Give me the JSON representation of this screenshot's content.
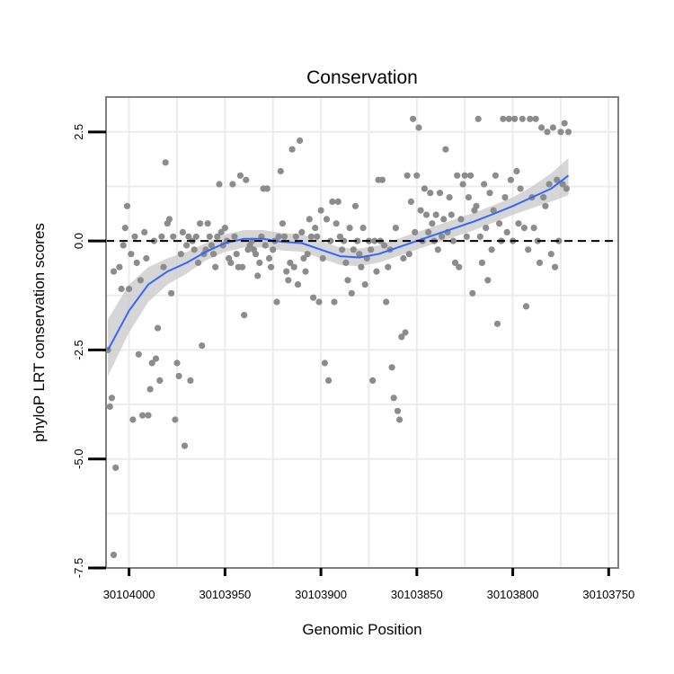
{
  "chart_data": {
    "type": "scatter",
    "title": "Conservation",
    "xlabel": "Genomic Position",
    "ylabel": "phyloP LRT conservation scores",
    "x_reversed": true,
    "xlim": [
      30104012,
      30103745
    ],
    "ylim": [
      -7.5,
      3.3
    ],
    "x_ticks": [
      30104000,
      30103950,
      30103900,
      30103850,
      30103800,
      30103750
    ],
    "x_tick_labels": [
      "30104000",
      "30103950",
      "30103900",
      "30103850",
      "30103800",
      "30103750"
    ],
    "y_ticks": [
      -7.5,
      -5.0,
      -2.5,
      0.0,
      2.5
    ],
    "y_tick_labels": [
      "-7.5",
      "-5.0",
      "-2.5",
      "0.0",
      "2.5"
    ],
    "reference_line": {
      "y": 0.0,
      "style": "dashed"
    },
    "grid": true,
    "colors": {
      "points": "#8c8c8c",
      "smooth": "#3366ff",
      "ribbon": "#c8c8c8",
      "panel_border": "#7f7f7f",
      "grid": "#ececec"
    },
    "points": [
      [
        30104011,
        -2.5
      ],
      [
        30104010,
        -3.8
      ],
      [
        30104009,
        -3.6
      ],
      [
        30104008,
        -0.7
      ],
      [
        30104007,
        -5.2
      ],
      [
        30104008,
        -7.2
      ],
      [
        30104005,
        -0.6
      ],
      [
        30104004,
        -1.1
      ],
      [
        30104003,
        -0.1
      ],
      [
        30104002,
        0.3
      ],
      [
        30104001,
        0.8
      ],
      [
        30104000,
        -1.1
      ],
      [
        30103999,
        -0.3
      ],
      [
        30103998,
        -4.1
      ],
      [
        30103997,
        0.1
      ],
      [
        30103996,
        -0.5
      ],
      [
        30103995,
        -2.6
      ],
      [
        30103994,
        -0.9
      ],
      [
        30103993,
        -4.0
      ],
      [
        30103992,
        0.2
      ],
      [
        30103991,
        -0.4
      ],
      [
        30103990,
        -4.0
      ],
      [
        30103989,
        -3.4
      ],
      [
        30103988,
        -2.8
      ],
      [
        30103987,
        0.0
      ],
      [
        30103986,
        -2.7
      ],
      [
        30103985,
        -2.0
      ],
      [
        30103984,
        -3.2
      ],
      [
        30103983,
        0.1
      ],
      [
        30103982,
        -0.6
      ],
      [
        30103981,
        1.8
      ],
      [
        30103980,
        0.4
      ],
      [
        30103979,
        0.5
      ],
      [
        30103978,
        -1.2
      ],
      [
        30103977,
        0.1
      ],
      [
        30103976,
        -4.1
      ],
      [
        30103975,
        -2.8
      ],
      [
        30103974,
        -3.1
      ],
      [
        30103973,
        -0.3
      ],
      [
        30103972,
        0.2
      ],
      [
        30103971,
        -4.7
      ],
      [
        30103970,
        -0.1
      ],
      [
        30103969,
        0.1
      ],
      [
        30103968,
        -3.2
      ],
      [
        30103967,
        0.0
      ],
      [
        30103966,
        -0.2
      ],
      [
        30103965,
        0.1
      ],
      [
        30103964,
        -0.5
      ],
      [
        30103963,
        0.4
      ],
      [
        30103962,
        -2.4
      ],
      [
        30103961,
        -0.3
      ],
      [
        30103960,
        -0.2
      ],
      [
        30103959,
        0.4
      ],
      [
        30103958,
        0.1
      ],
      [
        30103957,
        -0.1
      ],
      [
        30103956,
        -0.3
      ],
      [
        30103955,
        -0.6
      ],
      [
        30103954,
        0.1
      ],
      [
        30103953,
        1.3
      ],
      [
        30103952,
        0.2
      ],
      [
        30103951,
        -0.1
      ],
      [
        30103950,
        0.3
      ],
      [
        30103949,
        0.0
      ],
      [
        30103948,
        -0.4
      ],
      [
        30103947,
        -0.5
      ],
      [
        30103946,
        1.3
      ],
      [
        30103945,
        0.1
      ],
      [
        30103944,
        -0.3
      ],
      [
        30103943,
        -0.6
      ],
      [
        30103942,
        1.5
      ],
      [
        30103941,
        -0.6
      ],
      [
        30103940,
        -1.7
      ],
      [
        30103939,
        1.4
      ],
      [
        30103938,
        -0.2
      ],
      [
        30103937,
        -0.1
      ],
      [
        30103936,
        0.0
      ],
      [
        30103935,
        -0.2
      ],
      [
        30103934,
        -0.3
      ],
      [
        30103933,
        -0.8
      ],
      [
        30103932,
        -0.5
      ],
      [
        30103931,
        0.1
      ],
      [
        30103930,
        1.2
      ],
      [
        30103929,
        -0.1
      ],
      [
        30103928,
        1.2
      ],
      [
        30103927,
        -0.4
      ],
      [
        30103926,
        -0.6
      ],
      [
        30103925,
        -0.2
      ],
      [
        30103924,
        0.0
      ],
      [
        30103923,
        -1.4
      ],
      [
        30103922,
        0.1
      ],
      [
        30103921,
        1.6
      ],
      [
        30103920,
        0.4
      ],
      [
        30103919,
        0.1
      ],
      [
        30103918,
        -0.7
      ],
      [
        30103917,
        -0.9
      ],
      [
        30103916,
        -0.5
      ],
      [
        30103915,
        2.1
      ],
      [
        30103914,
        -0.6
      ],
      [
        30103913,
        0.1
      ],
      [
        30103912,
        -1.0
      ],
      [
        30103911,
        2.3
      ],
      [
        30103910,
        0.2
      ],
      [
        30103909,
        -0.4
      ],
      [
        30103908,
        -0.7
      ],
      [
        30103907,
        -0.3
      ],
      [
        30103906,
        0.5
      ],
      [
        30103905,
        0.1
      ],
      [
        30103904,
        -1.3
      ],
      [
        30103903,
        0.3
      ],
      [
        30103902,
        0.1
      ],
      [
        30103901,
        -1.4
      ],
      [
        30103900,
        0.7
      ],
      [
        30103899,
        -0.4
      ],
      [
        30103898,
        -2.8
      ],
      [
        30103897,
        0.5
      ],
      [
        30103896,
        -3.2
      ],
      [
        30103895,
        0.0
      ],
      [
        30103894,
        0.9
      ],
      [
        30103893,
        -1.4
      ],
      [
        30103892,
        0.4
      ],
      [
        30103891,
        0.9
      ],
      [
        30103890,
        0.1
      ],
      [
        30103889,
        -0.2
      ],
      [
        30103888,
        0.0
      ],
      [
        30103887,
        -0.5
      ],
      [
        30103886,
        -0.9
      ],
      [
        30103885,
        0.3
      ],
      [
        30103884,
        -1.2
      ],
      [
        30103883,
        -0.2
      ],
      [
        30103882,
        0.8
      ],
      [
        30103881,
        0.0
      ],
      [
        30103880,
        -0.3
      ],
      [
        30103879,
        -0.6
      ],
      [
        30103878,
        0.3
      ],
      [
        30103877,
        -1.0
      ],
      [
        30103876,
        -0.4
      ],
      [
        30103875,
        0.0
      ],
      [
        30103874,
        -0.2
      ],
      [
        30103873,
        -3.2
      ],
      [
        30103872,
        0.0
      ],
      [
        30103871,
        -0.7
      ],
      [
        30103870,
        1.4
      ],
      [
        30103869,
        0.0
      ],
      [
        30103868,
        1.4
      ],
      [
        30103867,
        -0.1
      ],
      [
        30103866,
        -1.4
      ],
      [
        30103865,
        -0.6
      ],
      [
        30103864,
        -0.2
      ],
      [
        30103863,
        -2.9
      ],
      [
        30103862,
        -3.6
      ],
      [
        30103861,
        0.3
      ],
      [
        30103860,
        -3.9
      ],
      [
        30103859,
        -4.1
      ],
      [
        30103858,
        -2.2
      ],
      [
        30103857,
        -0.4
      ],
      [
        30103856,
        -2.1
      ],
      [
        30103855,
        1.5
      ],
      [
        30103854,
        -0.3
      ],
      [
        30103853,
        0.9
      ],
      [
        30103852,
        2.8
      ],
      [
        30103851,
        0.2
      ],
      [
        30103850,
        1.5
      ],
      [
        30103849,
        2.6
      ],
      [
        30103848,
        0.7
      ],
      [
        30103847,
        0.0
      ],
      [
        30103846,
        1.2
      ],
      [
        30103845,
        0.6
      ],
      [
        30103844,
        0.2
      ],
      [
        30103843,
        1.1
      ],
      [
        30103842,
        0.4
      ],
      [
        30103841,
        0.0
      ],
      [
        30103840,
        0.6
      ],
      [
        30103839,
        -0.2
      ],
      [
        30103838,
        1.1
      ],
      [
        30103837,
        0.1
      ],
      [
        30103836,
        0.5
      ],
      [
        30103835,
        2.1
      ],
      [
        30103834,
        0.2
      ],
      [
        30103833,
        1.0
      ],
      [
        30103832,
        0.6
      ],
      [
        30103831,
        0.0
      ],
      [
        30103830,
        -0.5
      ],
      [
        30103829,
        1.5
      ],
      [
        30103828,
        -0.6
      ],
      [
        30103827,
        0.5
      ],
      [
        30103826,
        1.3
      ],
      [
        30103825,
        1.5
      ],
      [
        30103824,
        0.1
      ],
      [
        30103823,
        1.0
      ],
      [
        30103822,
        1.5
      ],
      [
        30103821,
        -1.2
      ],
      [
        30103820,
        0.7
      ],
      [
        30103819,
        0.8
      ],
      [
        30103818,
        2.8
      ],
      [
        30103817,
        0.1
      ],
      [
        30103816,
        -0.5
      ],
      [
        30103815,
        1.3
      ],
      [
        30103814,
        0.3
      ],
      [
        30103813,
        -0.9
      ],
      [
        30103812,
        1.1
      ],
      [
        30103811,
        -0.2
      ],
      [
        30103810,
        0.7
      ],
      [
        30103809,
        1.5
      ],
      [
        30103808,
        -1.9
      ],
      [
        30103807,
        0.4
      ],
      [
        30103806,
        0.0
      ],
      [
        30103805,
        2.8
      ],
      [
        30103804,
        1.0
      ],
      [
        30103803,
        0.2
      ],
      [
        30103802,
        2.8
      ],
      [
        30103801,
        1.4
      ],
      [
        30103800,
        0.0
      ],
      [
        30103799,
        2.8
      ],
      [
        30103798,
        1.6
      ],
      [
        30103797,
        0.4
      ],
      [
        30103796,
        1.2
      ],
      [
        30103795,
        2.8
      ],
      [
        30103794,
        0.3
      ],
      [
        30103793,
        -1.5
      ],
      [
        30103792,
        -0.2
      ],
      [
        30103791,
        2.8
      ],
      [
        30103790,
        1.0
      ],
      [
        30103789,
        0.3
      ],
      [
        30103788,
        2.8
      ],
      [
        30103787,
        0.0
      ],
      [
        30103786,
        -0.5
      ],
      [
        30103785,
        2.6
      ],
      [
        30103784,
        1.0
      ],
      [
        30103783,
        0.8
      ],
      [
        30103782,
        2.5
      ],
      [
        30103781,
        1.3
      ],
      [
        30103780,
        -0.3
      ],
      [
        30103779,
        2.6
      ],
      [
        30103778,
        -0.6
      ],
      [
        30103777,
        1.4
      ],
      [
        30103776,
        0.0
      ],
      [
        30103775,
        2.5
      ],
      [
        30103774,
        1.3
      ],
      [
        30103773,
        2.7
      ],
      [
        30103772,
        1.2
      ],
      [
        30103771,
        2.5
      ]
    ],
    "smooth": {
      "x": [
        30104011,
        30104000,
        30103990,
        30103980,
        30103970,
        30103960,
        30103950,
        30103940,
        30103930,
        30103920,
        30103910,
        30103900,
        30103890,
        30103880,
        30103870,
        30103860,
        30103850,
        30103840,
        30103830,
        30103820,
        30103810,
        30103800,
        30103790,
        30103780,
        30103771
      ],
      "y": [
        -2.5,
        -1.6,
        -1.0,
        -0.7,
        -0.5,
        -0.25,
        -0.05,
        0.05,
        0.05,
        -0.02,
        -0.05,
        -0.2,
        -0.35,
        -0.38,
        -0.3,
        -0.15,
        0.0,
        0.15,
        0.3,
        0.45,
        0.62,
        0.8,
        1.0,
        1.2,
        1.5
      ],
      "lower": [
        -3.1,
        -2.1,
        -1.4,
        -1.0,
        -0.75,
        -0.45,
        -0.25,
        -0.15,
        -0.15,
        -0.22,
        -0.25,
        -0.4,
        -0.55,
        -0.58,
        -0.5,
        -0.35,
        -0.2,
        -0.05,
        0.1,
        0.25,
        0.42,
        0.6,
        0.75,
        0.9,
        1.05
      ],
      "upper": [
        -1.8,
        -1.0,
        -0.6,
        -0.4,
        -0.25,
        -0.05,
        0.15,
        0.25,
        0.25,
        0.18,
        0.15,
        0.0,
        -0.15,
        -0.18,
        -0.1,
        0.05,
        0.2,
        0.35,
        0.5,
        0.65,
        0.82,
        1.0,
        1.25,
        1.55,
        1.9
      ]
    }
  }
}
